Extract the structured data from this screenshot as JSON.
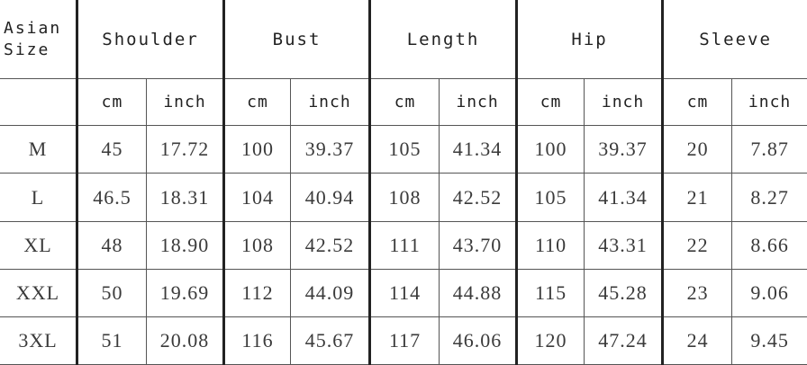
{
  "table": {
    "size_header": [
      "Asian",
      "Size"
    ],
    "groups": [
      "Shoulder",
      "Bust",
      "Length",
      "Hip",
      "Sleeve"
    ],
    "units": [
      "cm",
      "inch"
    ],
    "rows": [
      {
        "size": "M",
        "values": [
          "45",
          "17.72",
          "100",
          "39.37",
          "105",
          "41.34",
          "100",
          "39.37",
          "20",
          "7.87"
        ]
      },
      {
        "size": "L",
        "values": [
          "46.5",
          "18.31",
          "104",
          "40.94",
          "108",
          "42.52",
          "105",
          "41.34",
          "21",
          "8.27"
        ]
      },
      {
        "size": "XL",
        "values": [
          "48",
          "18.90",
          "108",
          "42.52",
          "111",
          "43.70",
          "110",
          "43.31",
          "22",
          "8.66"
        ]
      },
      {
        "size": "XXL",
        "values": [
          "50",
          "19.69",
          "112",
          "44.09",
          "114",
          "44.88",
          "115",
          "45.28",
          "23",
          "9.06"
        ]
      },
      {
        "size": "3XL",
        "values": [
          "51",
          "20.08",
          "116",
          "45.67",
          "117",
          "46.06",
          "120",
          "47.24",
          "24",
          "9.45"
        ]
      }
    ]
  }
}
